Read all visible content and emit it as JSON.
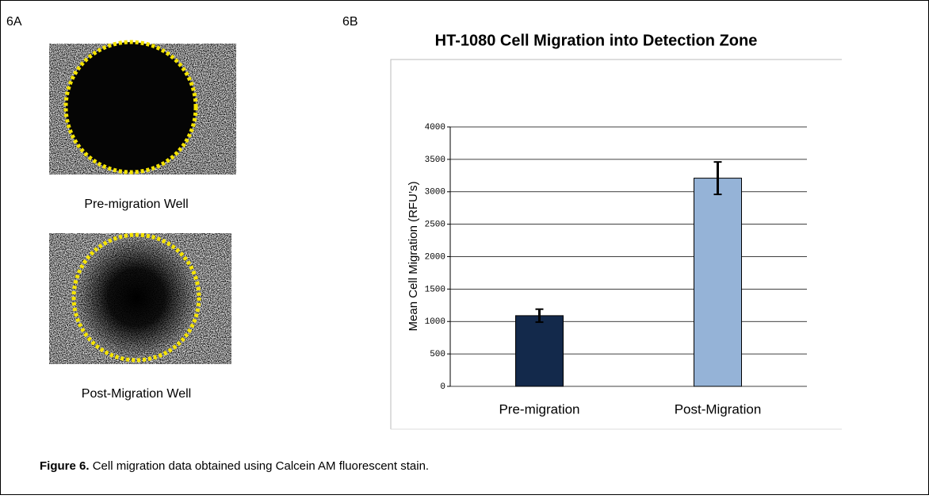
{
  "panels": {
    "left_label": "6A",
    "right_label": "6B",
    "image_captions": [
      "Pre-migration Well",
      "Post-Migration Well"
    ]
  },
  "caption": {
    "label": "Figure 6.",
    "text": "Cell migration data obtained using Calcein AM fluorescent stain."
  },
  "chart_data": {
    "type": "bar",
    "title": "HT-1080 Cell Migration into Detection Zone",
    "y_label": "Mean Cell Migration (RFU’s)",
    "categories": [
      "Pre-migration",
      "Post-Migration"
    ],
    "values": [
      1090,
      3210
    ],
    "errors": [
      100,
      250
    ],
    "colors": [
      "#13294b",
      "#95b3d7"
    ],
    "ylim": [
      0,
      4000
    ],
    "yticks": [
      0,
      500,
      1000,
      1500,
      2000,
      2500,
      3000,
      3500,
      4000
    ],
    "grid": true
  }
}
